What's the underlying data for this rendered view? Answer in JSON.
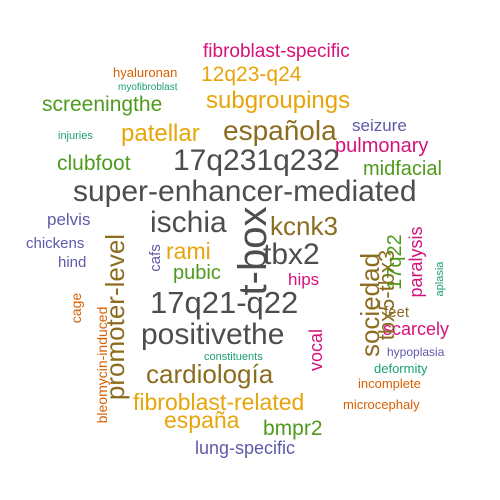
{
  "colors": {
    "dark_gray": "#4d4d4d",
    "brown": "#8c6d1f",
    "gold": "#e6a50a",
    "green": "#4f9a1c",
    "magenta": "#d6127a",
    "orange": "#d95f02",
    "purple": "#5f5aa8",
    "teal": "#1b9e77"
  },
  "words": [
    {
      "text": "fibroblast-specific",
      "color": "#d6127a"
    },
    {
      "text": "hyaluronan",
      "color": "#d95f02"
    },
    {
      "text": "myofibroblast",
      "color": "#1b9e77"
    },
    {
      "text": "12q23-q24",
      "color": "#e6a50a"
    },
    {
      "text": "screeningthe",
      "color": "#4f9a1c"
    },
    {
      "text": "subgroupings",
      "color": "#e6a50a"
    },
    {
      "text": "injuries",
      "color": "#1b9e77"
    },
    {
      "text": "patellar",
      "color": "#e6a50a"
    },
    {
      "text": "española",
      "color": "#8c6d1f"
    },
    {
      "text": "seizure",
      "color": "#5f5aa8"
    },
    {
      "text": "pulmonary",
      "color": "#d6127a"
    },
    {
      "text": "clubfoot",
      "color": "#4f9a1c"
    },
    {
      "text": "17q231q232",
      "color": "#4d4d4d"
    },
    {
      "text": "midfacial",
      "color": "#4f9a1c"
    },
    {
      "text": "super-enhancer-mediated",
      "color": "#4d4d4d"
    },
    {
      "text": "pelvis",
      "color": "#5f5aa8"
    },
    {
      "text": "ischia",
      "color": "#4d4d4d"
    },
    {
      "text": "kcnk3",
      "color": "#8c6d1f"
    },
    {
      "text": "chickens",
      "color": "#5f5aa8"
    },
    {
      "text": "hind",
      "color": "#5f5aa8"
    },
    {
      "text": "rami",
      "color": "#e6a50a"
    },
    {
      "text": "tbx2",
      "color": "#4d4d4d"
    },
    {
      "text": "pubic",
      "color": "#4f9a1c"
    },
    {
      "text": "hips",
      "color": "#d6127a"
    },
    {
      "text": "17q21-q22",
      "color": "#4d4d4d"
    },
    {
      "text": "positivethe",
      "color": "#4d4d4d"
    },
    {
      "text": "cardiología",
      "color": "#8c6d1f"
    },
    {
      "text": "fibroblast-related",
      "color": "#e6a50a"
    },
    {
      "text": "españa",
      "color": "#e6a50a"
    },
    {
      "text": "bmpr2",
      "color": "#4f9a1c"
    },
    {
      "text": "lung-specific",
      "color": "#5f5aa8"
    },
    {
      "text": "feet",
      "color": "#8c6d1f"
    },
    {
      "text": "scarcely",
      "color": "#d6127a"
    },
    {
      "text": "hypoplasia",
      "color": "#5f5aa8"
    },
    {
      "text": "constituents",
      "color": "#1b9e77"
    },
    {
      "text": "deformity",
      "color": "#1b9e77"
    },
    {
      "text": "incomplete",
      "color": "#d95f02"
    },
    {
      "text": "microcephaly",
      "color": "#d95f02"
    },
    {
      "text": "promoter-level",
      "color": "#8c6d1f"
    },
    {
      "text": "t-box",
      "color": "#4d4d4d"
    },
    {
      "text": "cafs",
      "color": "#5f5aa8"
    },
    {
      "text": "sociedad",
      "color": "#8c6d1f"
    },
    {
      "text": "tbx5-tbx3",
      "color": "#8c6d1f"
    },
    {
      "text": "17q22",
      "color": "#4f9a1c"
    },
    {
      "text": "paralysis",
      "color": "#d6127a"
    },
    {
      "text": "vocal",
      "color": "#d6127a"
    },
    {
      "text": "aplasia",
      "color": "#1b9e77"
    },
    {
      "text": "cage",
      "color": "#d95f02"
    },
    {
      "text": "bleomycin-induced",
      "color": "#d95f02"
    }
  ]
}
